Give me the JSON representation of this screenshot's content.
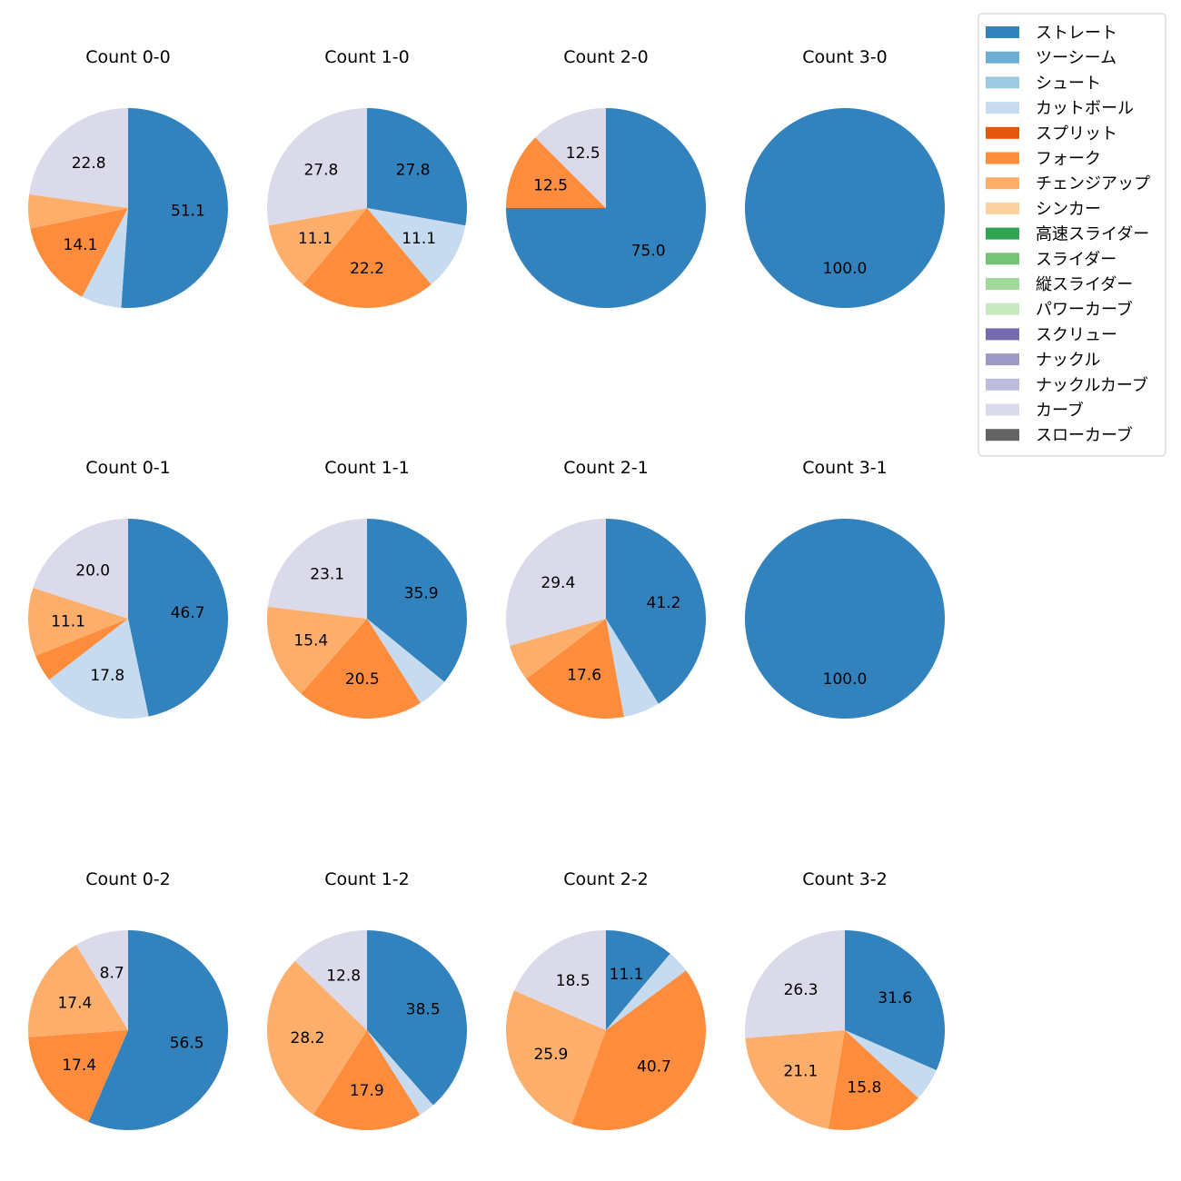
{
  "legend_entries": [
    {
      "name": "ストレート",
      "color": "#3182bd"
    },
    {
      "name": "ツーシーム",
      "color": "#6baed6"
    },
    {
      "name": "シュート",
      "color": "#9ecae1"
    },
    {
      "name": "カットボール",
      "color": "#c6dbef"
    },
    {
      "name": "スプリット",
      "color": "#e6550d"
    },
    {
      "name": "フォーク",
      "color": "#fd8d3c"
    },
    {
      "name": "チェンジアップ",
      "color": "#fdae6b"
    },
    {
      "name": "シンカー",
      "color": "#fdd0a2"
    },
    {
      "name": "高速スライダー",
      "color": "#31a354"
    },
    {
      "name": "スライダー",
      "color": "#74c476"
    },
    {
      "name": "縦スライダー",
      "color": "#a1d99b"
    },
    {
      "name": "パワーカーブ",
      "color": "#c7e9c0"
    },
    {
      "name": "スクリュー",
      "color": "#756bb1"
    },
    {
      "name": "ナックル",
      "color": "#9e9ac8"
    },
    {
      "name": "ナックルカーブ",
      "color": "#bcbddc"
    },
    {
      "name": "カーブ",
      "color": "#dadaeb"
    },
    {
      "name": "スローカーブ",
      "color": "#636363"
    }
  ],
  "chart_data": [
    {
      "type": "pie",
      "title": "Count 0-0",
      "slices": [
        {
          "pitch": "ストレート",
          "value": 51.1,
          "label": "51.1"
        },
        {
          "pitch": "カットボール",
          "value": 6.5,
          "label": ""
        },
        {
          "pitch": "フォーク",
          "value": 14.1,
          "label": "14.1"
        },
        {
          "pitch": "チェンジアップ",
          "value": 5.5,
          "label": ""
        },
        {
          "pitch": "カーブ",
          "value": 22.8,
          "label": "22.8"
        }
      ]
    },
    {
      "type": "pie",
      "title": "Count 1-0",
      "slices": [
        {
          "pitch": "ストレート",
          "value": 27.8,
          "label": "27.8"
        },
        {
          "pitch": "カットボール",
          "value": 11.1,
          "label": "11.1"
        },
        {
          "pitch": "フォーク",
          "value": 22.2,
          "label": "22.2"
        },
        {
          "pitch": "チェンジアップ",
          "value": 11.1,
          "label": "11.1"
        },
        {
          "pitch": "カーブ",
          "value": 27.8,
          "label": "27.8"
        }
      ]
    },
    {
      "type": "pie",
      "title": "Count 2-0",
      "slices": [
        {
          "pitch": "ストレート",
          "value": 75.0,
          "label": "75.0"
        },
        {
          "pitch": "フォーク",
          "value": 12.5,
          "label": "12.5"
        },
        {
          "pitch": "カーブ",
          "value": 12.5,
          "label": "12.5"
        }
      ]
    },
    {
      "type": "pie",
      "title": "Count 3-0",
      "slices": [
        {
          "pitch": "ストレート",
          "value": 100.0,
          "label": "100.0"
        }
      ]
    },
    {
      "type": "pie",
      "title": "Count 0-1",
      "slices": [
        {
          "pitch": "ストレート",
          "value": 46.7,
          "label": "46.7"
        },
        {
          "pitch": "カットボール",
          "value": 17.8,
          "label": "17.8"
        },
        {
          "pitch": "フォーク",
          "value": 4.4,
          "label": ""
        },
        {
          "pitch": "チェンジアップ",
          "value": 11.1,
          "label": "11.1"
        },
        {
          "pitch": "カーブ",
          "value": 20.0,
          "label": "20.0"
        }
      ]
    },
    {
      "type": "pie",
      "title": "Count 1-1",
      "slices": [
        {
          "pitch": "ストレート",
          "value": 35.9,
          "label": "35.9"
        },
        {
          "pitch": "カットボール",
          "value": 5.1,
          "label": ""
        },
        {
          "pitch": "フォーク",
          "value": 20.5,
          "label": "20.5"
        },
        {
          "pitch": "チェンジアップ",
          "value": 15.4,
          "label": "15.4"
        },
        {
          "pitch": "カーブ",
          "value": 23.1,
          "label": "23.1"
        }
      ]
    },
    {
      "type": "pie",
      "title": "Count 2-1",
      "slices": [
        {
          "pitch": "ストレート",
          "value": 41.2,
          "label": "41.2"
        },
        {
          "pitch": "カットボール",
          "value": 5.9,
          "label": ""
        },
        {
          "pitch": "フォーク",
          "value": 17.6,
          "label": "17.6"
        },
        {
          "pitch": "チェンジアップ",
          "value": 5.9,
          "label": ""
        },
        {
          "pitch": "カーブ",
          "value": 29.4,
          "label": "29.4"
        }
      ]
    },
    {
      "type": "pie",
      "title": "Count 3-1",
      "slices": [
        {
          "pitch": "ストレート",
          "value": 100.0,
          "label": "100.0"
        }
      ]
    },
    {
      "type": "pie",
      "title": "Count 0-2",
      "slices": [
        {
          "pitch": "ストレート",
          "value": 56.5,
          "label": "56.5"
        },
        {
          "pitch": "フォーク",
          "value": 17.4,
          "label": "17.4"
        },
        {
          "pitch": "チェンジアップ",
          "value": 17.4,
          "label": "17.4"
        },
        {
          "pitch": "カーブ",
          "value": 8.7,
          "label": "8.7"
        }
      ]
    },
    {
      "type": "pie",
      "title": "Count 1-2",
      "slices": [
        {
          "pitch": "ストレート",
          "value": 38.5,
          "label": "38.5"
        },
        {
          "pitch": "カットボール",
          "value": 2.6,
          "label": ""
        },
        {
          "pitch": "フォーク",
          "value": 17.9,
          "label": "17.9"
        },
        {
          "pitch": "チェンジアップ",
          "value": 28.2,
          "label": "28.2"
        },
        {
          "pitch": "カーブ",
          "value": 12.8,
          "label": "12.8"
        }
      ]
    },
    {
      "type": "pie",
      "title": "Count 2-2",
      "slices": [
        {
          "pitch": "ストレート",
          "value": 11.1,
          "label": "11.1"
        },
        {
          "pitch": "カットボール",
          "value": 3.7,
          "label": ""
        },
        {
          "pitch": "フォーク",
          "value": 40.7,
          "label": "40.7"
        },
        {
          "pitch": "チェンジアップ",
          "value": 25.9,
          "label": "25.9"
        },
        {
          "pitch": "カーブ",
          "value": 18.5,
          "label": "18.5"
        }
      ]
    },
    {
      "type": "pie",
      "title": "Count 3-2",
      "slices": [
        {
          "pitch": "ストレート",
          "value": 31.6,
          "label": "31.6"
        },
        {
          "pitch": "カットボール",
          "value": 5.3,
          "label": ""
        },
        {
          "pitch": "フォーク",
          "value": 15.8,
          "label": "15.8"
        },
        {
          "pitch": "チェンジアップ",
          "value": 21.1,
          "label": "21.1"
        },
        {
          "pitch": "カーブ",
          "value": 26.3,
          "label": "26.3"
        }
      ]
    }
  ]
}
